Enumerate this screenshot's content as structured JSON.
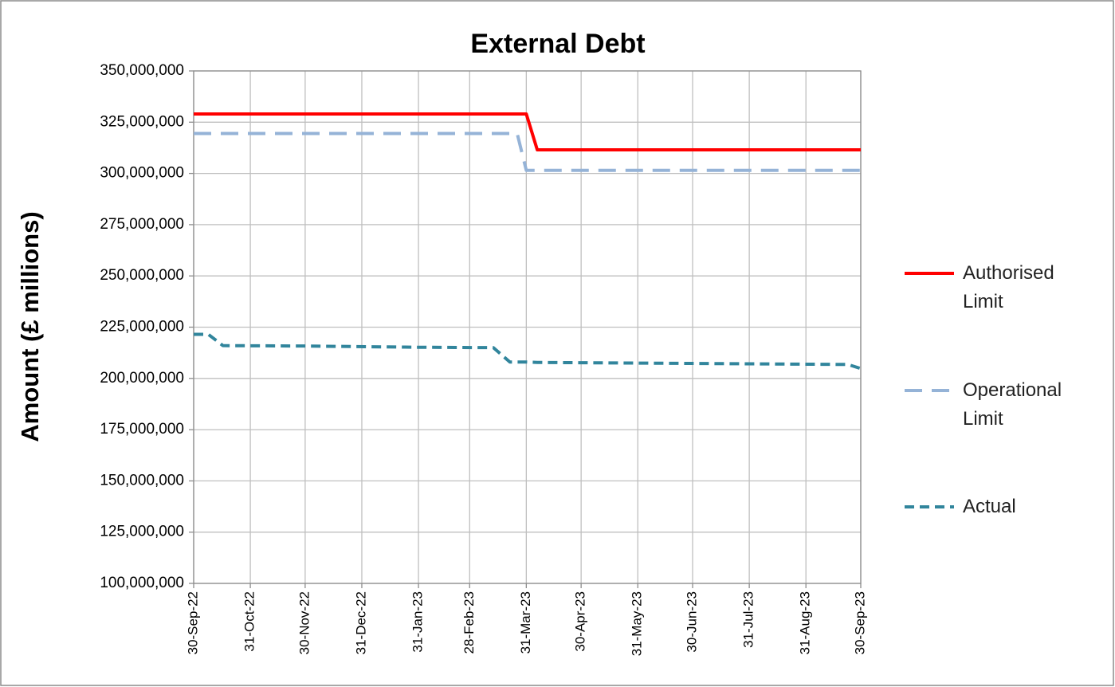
{
  "chart_data": {
    "type": "line",
    "title": "External Debt",
    "y_label": "Amount (£ millions)",
    "x": [
      "30-Sep-22",
      "08-Oct-22",
      "16-Oct-22",
      "30-Nov-22",
      "31-Jan-23",
      "13-Mar-23",
      "22-Mar-23",
      "26-Mar-23",
      "31-Mar-23",
      "06-Apr-23",
      "30-Jun-23",
      "23-Sep-23",
      "30-Sep-23"
    ],
    "xlim": [
      "30-Sep-22",
      "30-Sep-23"
    ],
    "xticks": [
      "30-Sep-22",
      "31-Oct-22",
      "30-Nov-22",
      "31-Dec-22",
      "31-Jan-23",
      "28-Feb-23",
      "31-Mar-23",
      "30-Apr-23",
      "31-May-23",
      "30-Jun-23",
      "31-Jul-23",
      "31-Aug-23",
      "30-Sep-23"
    ],
    "ylim": [
      100000000,
      350000000
    ],
    "yticks": [
      {
        "value": 100000000,
        "label": "100,000,000"
      },
      {
        "value": 125000000,
        "label": "125,000,000"
      },
      {
        "value": 150000000,
        "label": "150,000,000"
      },
      {
        "value": 175000000,
        "label": "175,000,000"
      },
      {
        "value": 200000000,
        "label": "200,000,000"
      },
      {
        "value": 225000000,
        "label": "225,000,000"
      },
      {
        "value": 250000000,
        "label": "250,000,000"
      },
      {
        "value": 275000000,
        "label": "275,000,000"
      },
      {
        "value": 300000000,
        "label": "300,000,000"
      },
      {
        "value": 325000000,
        "label": "325,000,000"
      },
      {
        "value": 350000000,
        "label": "350,000,000"
      }
    ],
    "grid": true,
    "legend": "right",
    "series": [
      {
        "name": "Authorised Limit",
        "color": "#ff0000",
        "dash": "solid",
        "values": [
          329000000,
          329000000,
          329000000,
          329000000,
          329000000,
          329000000,
          329000000,
          329000000,
          329000000,
          311500000,
          311500000,
          311500000,
          311500000
        ]
      },
      {
        "name": "Operational Limit",
        "color": "#95b3d7",
        "dash": "long",
        "values": [
          319500000,
          319500000,
          319500000,
          319500000,
          319500000,
          319500000,
          319500000,
          319500000,
          301500000,
          301500000,
          301500000,
          301500000,
          301500000
        ]
      },
      {
        "name": "Actual",
        "color": "#31859c",
        "dash": "short",
        "values": [
          221500000,
          221500000,
          216000000,
          215800000,
          215200000,
          215000000,
          208000000,
          208000000,
          208000000,
          207800000,
          207300000,
          206800000,
          204800000
        ]
      }
    ]
  }
}
